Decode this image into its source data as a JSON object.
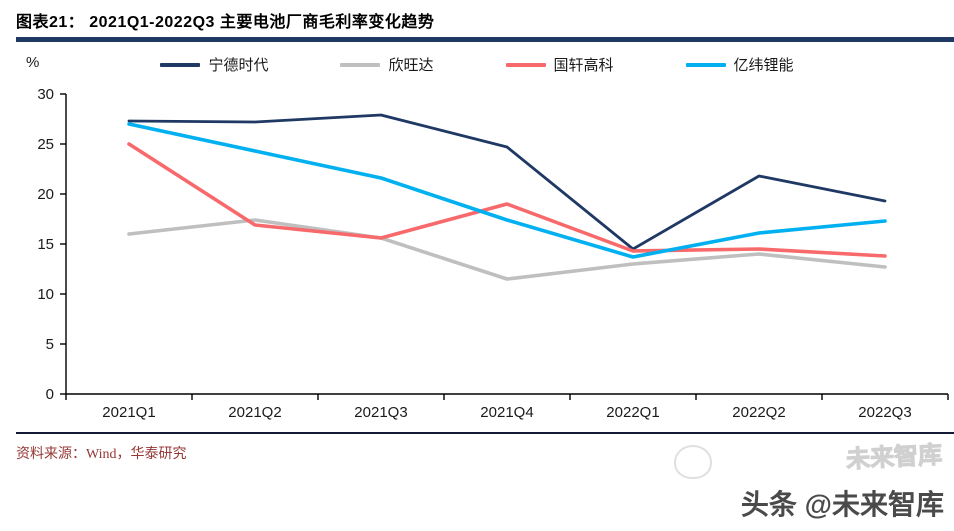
{
  "header": {
    "title": "图表21：  2021Q1-2022Q3 主要电池厂商毛利率变化趋势"
  },
  "chart_data": {
    "type": "line",
    "title": "2021Q1-2022Q3 主要电池厂商毛利率变化趋势",
    "unit_label": "%",
    "categories": [
      "2021Q1",
      "2021Q2",
      "2021Q3",
      "2021Q4",
      "2022Q1",
      "2022Q2",
      "2022Q3"
    ],
    "series": [
      {
        "name": "宁德时代",
        "color": "#1f3864",
        "values": [
          27.3,
          27.2,
          27.9,
          24.7,
          14.5,
          21.8,
          19.3
        ]
      },
      {
        "name": "欣旺达",
        "color": "#bfbfbf",
        "values": [
          16.0,
          17.4,
          15.6,
          11.5,
          13.0,
          14.0,
          12.7
        ]
      },
      {
        "name": "国轩高科",
        "color": "#f8696b",
        "values": [
          25.0,
          16.9,
          15.6,
          19.0,
          14.3,
          14.5,
          13.8
        ]
      },
      {
        "name": "亿纬锂能",
        "color": "#00b0f0",
        "values": [
          27.0,
          24.3,
          21.6,
          17.4,
          13.7,
          16.1,
          17.3
        ]
      }
    ],
    "ylim": [
      0,
      30
    ],
    "yticks": [
      0,
      5,
      10,
      15,
      20,
      25,
      30
    ],
    "grid": false,
    "legend_position": "top",
    "axis_color": "#000000"
  },
  "footer": {
    "source": "资料来源：Wind，华泰研究"
  },
  "watermark": {
    "main": "头条 @未来智库",
    "ghost": "未来智库"
  }
}
